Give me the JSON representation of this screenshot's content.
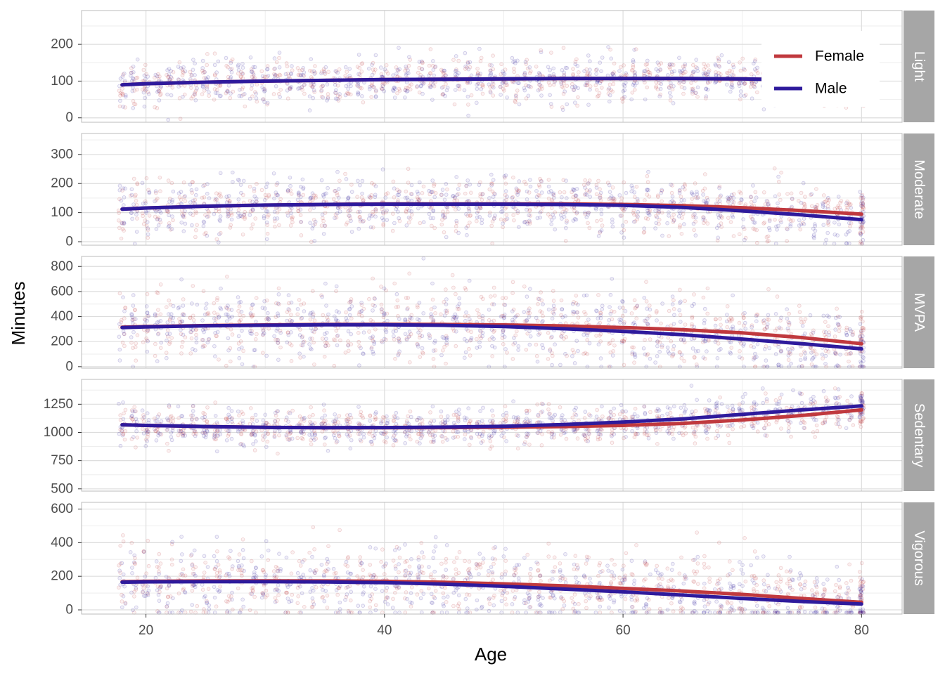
{
  "chart_data": {
    "type": "scatter",
    "xlabel": "Age",
    "ylabel": "Minutes",
    "xlim": [
      14.6,
      83.4
    ],
    "x_ticks": [
      20,
      40,
      60,
      80
    ],
    "x_labels": [
      "20",
      "40",
      "60",
      "80"
    ],
    "grid": true,
    "legend": {
      "position": "top-right",
      "entries": [
        {
          "name": "Female",
          "color": "#C0393E"
        },
        {
          "name": "Male",
          "color": "#2E1A9C"
        }
      ]
    },
    "colors": {
      "Female": "#C0393E",
      "Male": "#2E1A9C",
      "strip_bg": "#A6A6A6",
      "grid_major": "#DDDDDD",
      "grid_minor": "#EEEEEE",
      "panel_border": "#BBBBBB"
    },
    "x": [
      18,
      20,
      25,
      30,
      35,
      40,
      45,
      50,
      55,
      60,
      65,
      70,
      75,
      80
    ],
    "panels": [
      {
        "facet": "Light",
        "ylim": [
          -12,
          292
        ],
        "y_ticks": [
          0,
          100,
          200
        ],
        "y_labels": [
          "0",
          "100",
          "200"
        ],
        "series": [
          {
            "name": "Female",
            "values": [
              90,
              93,
              97,
              100,
              102,
              104,
              105,
              106,
              107,
              107,
              107,
              106,
              103,
              98
            ]
          },
          {
            "name": "Male",
            "values": [
              90,
              93,
              97,
              100,
              102,
              104,
              105,
              106,
              107,
              107,
              107,
              106,
              103,
              98
            ]
          }
        ]
      },
      {
        "facet": "Moderate",
        "ylim": [
          -12,
          372
        ],
        "y_ticks": [
          0,
          100,
          200,
          300
        ],
        "y_labels": [
          "0",
          "100",
          "200",
          "300"
        ],
        "series": [
          {
            "name": "Female",
            "values": [
              112,
              116,
              122,
              126,
              128,
              130,
              130,
              130,
              130,
              128,
              124,
              117,
              107,
              95
            ]
          },
          {
            "name": "Male",
            "values": [
              112,
              116,
              122,
              126,
              128,
              129,
              129,
              129,
              128,
              125,
              118,
              106,
              92,
              76
            ]
          }
        ]
      },
      {
        "facet": "MVPA",
        "ylim": [
          -12,
          880
        ],
        "y_ticks": [
          0,
          200,
          400,
          600,
          800
        ],
        "y_labels": [
          "0",
          "200",
          "400",
          "600",
          "800"
        ],
        "series": [
          {
            "name": "Female",
            "values": [
              315,
              320,
              328,
              333,
              337,
              338,
              337,
              333,
              325,
              312,
              295,
              270,
              232,
              183
            ]
          },
          {
            "name": "Male",
            "values": [
              312,
              318,
              326,
              331,
              334,
              334,
              330,
              320,
              303,
              282,
              255,
              220,
              183,
              142
            ]
          }
        ]
      },
      {
        "facet": "Sedentary",
        "ylim": [
          480,
          1470
        ],
        "y_ticks": [
          500,
          750,
          1000,
          1250
        ],
        "y_labels": [
          "500",
          "750",
          "1000",
          "1250"
        ],
        "series": [
          {
            "name": "Female",
            "values": [
              1068,
              1062,
              1052,
              1045,
              1042,
              1042,
              1043,
              1046,
              1052,
              1062,
              1080,
              1110,
              1150,
              1200
            ]
          },
          {
            "name": "Male",
            "values": [
              1068,
              1062,
              1052,
              1045,
              1042,
              1043,
              1047,
              1055,
              1070,
              1092,
              1120,
              1160,
              1200,
              1235
            ]
          }
        ]
      },
      {
        "facet": "Vigorous",
        "ylim": [
          -25,
          640
        ],
        "y_ticks": [
          0,
          200,
          400,
          600
        ],
        "y_labels": [
          "0",
          "200",
          "400",
          "600"
        ],
        "series": [
          {
            "name": "Female",
            "values": [
              168,
              170,
              172,
              173,
              172,
              170,
              164,
              155,
              143,
              128,
              112,
              92,
              68,
              45
            ]
          },
          {
            "name": "Male",
            "values": [
              165,
              167,
              168,
              168,
              166,
              162,
              153,
              140,
              124,
              107,
              88,
              68,
              50,
              35
            ]
          }
        ]
      }
    ]
  }
}
